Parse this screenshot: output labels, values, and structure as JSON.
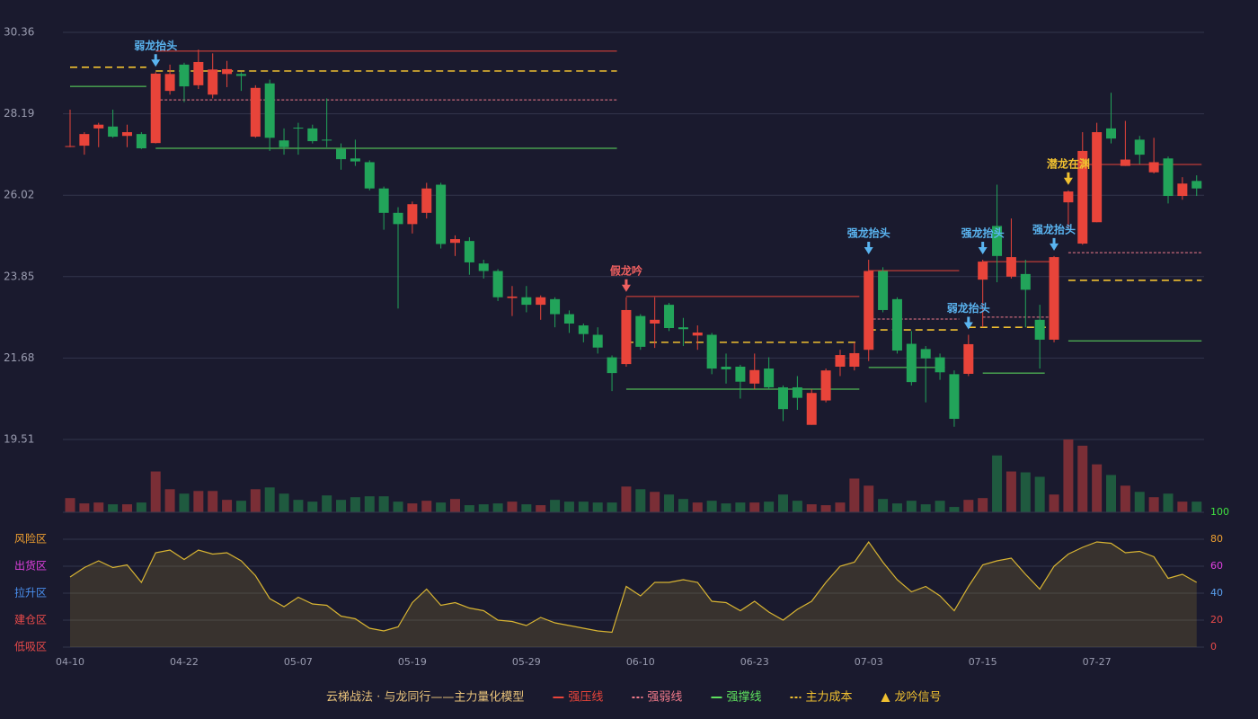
{
  "chart_data": {
    "type": "candlestick",
    "title": "云梯战法 · 与龙同行——主力量化模型",
    "categories": [
      "04-10",
      null,
      null,
      null,
      null,
      null,
      null,
      null,
      "04-22",
      null,
      null,
      null,
      null,
      null,
      null,
      null,
      "05-07",
      null,
      null,
      null,
      null,
      null,
      null,
      null,
      "05-19",
      null,
      null,
      null,
      null,
      null,
      null,
      null,
      "05-29",
      null,
      null,
      null,
      null,
      null,
      null,
      null,
      "06-10",
      null,
      null,
      null,
      null,
      null,
      null,
      null,
      "06-23",
      null,
      null,
      null,
      null,
      null,
      null,
      null,
      "07-03",
      null,
      null,
      null,
      null,
      null,
      null,
      null,
      "07-15",
      null,
      null,
      null,
      null,
      null,
      null,
      null,
      "07-27",
      null,
      null,
      null,
      null,
      null,
      null,
      null
    ],
    "open": [
      27.32,
      27.34,
      27.8,
      27.85,
      27.6,
      27.65,
      27.41,
      28.8,
      29.5,
      28.95,
      28.7,
      29.25,
      29.25,
      27.58,
      29.0,
      27.48,
      27.82,
      27.8,
      27.5,
      27.25,
      27.0,
      26.9,
      26.2,
      25.55,
      25.25,
      25.55,
      26.3,
      24.75,
      24.8,
      24.2,
      24.0,
      23.28,
      23.3,
      23.1,
      23.25,
      22.85,
      22.55,
      22.3,
      21.7,
      21.52,
      22.8,
      22.6,
      23.1,
      22.5,
      22.28,
      22.3,
      21.45,
      21.45,
      21.0,
      21.4,
      20.9,
      20.9,
      19.9,
      20.55,
      21.45,
      21.45,
      21.9,
      24.0,
      23.25,
      22.06,
      21.92,
      21.7,
      21.25,
      21.26,
      23.77,
      25.2,
      23.85,
      23.92,
      22.7,
      22.17,
      25.83,
      24.73,
      25.3,
      27.8,
      26.8,
      27.5,
      26.63,
      27.0,
      26.0,
      26.4
    ],
    "high": [
      28.3,
      27.7,
      27.95,
      28.3,
      27.9,
      27.7,
      29.3,
      29.5,
      29.55,
      29.9,
      29.8,
      29.6,
      29.3,
      28.95,
      29.1,
      27.8,
      27.95,
      27.9,
      28.6,
      27.4,
      27.5,
      26.95,
      26.25,
      25.7,
      25.85,
      26.35,
      26.35,
      24.95,
      24.9,
      24.3,
      24.05,
      23.6,
      23.6,
      23.35,
      23.3,
      22.95,
      22.6,
      22.5,
      21.75,
      23.3,
      22.85,
      23.3,
      23.15,
      22.75,
      22.55,
      22.35,
      21.8,
      21.5,
      21.8,
      21.7,
      20.95,
      21.2,
      20.85,
      21.4,
      21.9,
      22.1,
      24.3,
      24.1,
      23.3,
      22.4,
      22.0,
      21.8,
      21.35,
      22.3,
      24.3,
      26.3,
      25.4,
      24.3,
      23.1,
      24.4,
      26.15,
      27.7,
      27.95,
      28.75,
      28.0,
      27.6,
      27.55,
      27.05,
      26.5,
      26.55
    ],
    "low": [
      27.3,
      27.1,
      27.3,
      27.55,
      27.3,
      27.25,
      27.4,
      28.7,
      28.5,
      28.85,
      28.6,
      28.9,
      28.8,
      27.55,
      27.2,
      27.1,
      27.1,
      27.4,
      27.3,
      26.7,
      26.8,
      26.15,
      25.1,
      23.0,
      25.0,
      25.4,
      24.6,
      24.4,
      23.9,
      23.8,
      23.2,
      22.8,
      22.9,
      22.7,
      22.5,
      22.35,
      22.1,
      21.8,
      20.8,
      21.45,
      21.9,
      21.95,
      22.4,
      22.0,
      21.9,
      21.25,
      21.0,
      20.6,
      20.85,
      20.85,
      20.0,
      20.3,
      19.9,
      20.5,
      21.2,
      21.35,
      21.6,
      22.9,
      21.8,
      20.95,
      20.5,
      21.1,
      19.85,
      21.2,
      22.5,
      23.7,
      23.8,
      22.5,
      21.4,
      22.1,
      25.1,
      24.7,
      25.3,
      27.4,
      26.8,
      26.85,
      26.6,
      25.8,
      25.9,
      26.0
    ],
    "close": [
      27.33,
      27.65,
      27.9,
      27.58,
      27.7,
      27.27,
      29.26,
      29.25,
      28.92,
      29.57,
      29.37,
      29.38,
      29.2,
      28.88,
      27.55,
      27.3,
      27.8,
      27.46,
      27.48,
      26.98,
      26.92,
      26.2,
      25.55,
      25.25,
      25.78,
      26.2,
      24.72,
      24.85,
      24.23,
      24.0,
      23.3,
      23.32,
      23.1,
      23.3,
      22.85,
      22.6,
      22.32,
      21.96,
      21.28,
      22.96,
      21.98,
      22.7,
      22.48,
      22.45,
      22.36,
      21.4,
      21.38,
      21.05,
      21.36,
      20.9,
      20.32,
      20.62,
      20.75,
      21.35,
      21.76,
      21.81,
      24.0,
      22.96,
      21.88,
      21.04,
      21.67,
      21.3,
      20.06,
      22.05,
      24.25,
      24.4,
      24.37,
      23.5,
      22.17,
      24.37,
      26.12,
      27.2,
      27.7,
      27.53,
      26.97,
      27.1,
      26.9,
      26.0,
      26.33,
      26.2
    ],
    "up_color": "#e8443a",
    "down_color": "#22a45a",
    "volume_up_color": "#7a2e36",
    "volume_down_color": "#1f5a3f",
    "ylim": [
      19.51,
      30.36
    ],
    "yticks": [
      19.51,
      21.68,
      23.85,
      26.02,
      28.19,
      30.36
    ],
    "grid": true,
    "volume": [
      16,
      10,
      11,
      9,
      9,
      11,
      46,
      26,
      21,
      24,
      24,
      14,
      13,
      26,
      28,
      21,
      14,
      12,
      19,
      14,
      17,
      18,
      18,
      12,
      10,
      13,
      11,
      15,
      8,
      9,
      10,
      12,
      9,
      8,
      14,
      12,
      12,
      11,
      11,
      29,
      26,
      23,
      20,
      15,
      11,
      13,
      10,
      11,
      11,
      12,
      20,
      13,
      9,
      8,
      11,
      38,
      30,
      15,
      10,
      13,
      9,
      13,
      6,
      14,
      16,
      64,
      46,
      45,
      40,
      20,
      82,
      75,
      54,
      42,
      30,
      23,
      17,
      21,
      12,
      12
    ],
    "lines": [
      {
        "name": "强压线",
        "color": "#e8443a",
        "dashed": false,
        "segments": [
          {
            "from": 6,
            "to": 38,
            "value": 29.86
          },
          {
            "from": 39,
            "to": 55,
            "value": 23.32
          },
          {
            "from": 56,
            "to": 62,
            "value": 24.01
          },
          {
            "from": 64,
            "to": 69,
            "value": 24.25
          },
          {
            "from": 70,
            "to": 79,
            "value": 26.84
          }
        ]
      },
      {
        "name": "强弱线",
        "color": "#f07a8a",
        "dashed": true,
        "segments": [
          {
            "from": 6,
            "to": 38,
            "value": 28.56
          },
          {
            "from": 56,
            "to": 62,
            "value": 22.72
          },
          {
            "from": 64,
            "to": 69,
            "value": 22.77
          },
          {
            "from": 70,
            "to": 79,
            "value": 24.49
          }
        ]
      },
      {
        "name": "强撑线",
        "color": "#5ee05e",
        "dashed": false,
        "segments": [
          {
            "from": 0,
            "to": 5,
            "value": 28.92
          },
          {
            "from": 6,
            "to": 38,
            "value": 27.27
          },
          {
            "from": 39,
            "to": 55,
            "value": 20.85
          },
          {
            "from": 56,
            "to": 61,
            "value": 21.43
          },
          {
            "from": 64,
            "to": 68,
            "value": 21.28
          },
          {
            "from": 70,
            "to": 79,
            "value": 22.14
          }
        ]
      },
      {
        "name": "主力成本",
        "color": "#f0c030",
        "dashed": true,
        "segments": [
          {
            "from": 0,
            "to": 5,
            "value": 29.43
          },
          {
            "from": 6,
            "to": 38,
            "value": 29.33
          },
          {
            "from": 39,
            "to": 55,
            "value": 22.1
          },
          {
            "from": 56,
            "to": 62,
            "value": 22.43
          },
          {
            "from": 63,
            "to": 69,
            "value": 22.5
          },
          {
            "from": 70,
            "to": 79,
            "value": 23.75
          }
        ]
      }
    ],
    "signals": [
      {
        "index": 6,
        "label": "弱龙抬头",
        "color": "#5ab4f0"
      },
      {
        "index": 39,
        "label": "假龙吟",
        "color": "#f06060"
      },
      {
        "index": 56,
        "label": "强龙抬头",
        "color": "#5ab4f0"
      },
      {
        "index": 63,
        "label": "弱龙抬头",
        "color": "#5ab4f0"
      },
      {
        "index": 64,
        "label": "强龙抬头",
        "color": "#5ab4f0"
      },
      {
        "index": 69,
        "label": "强龙抬头",
        "color": "#5ab4f0"
      },
      {
        "index": 70,
        "label": "潜龙在渊",
        "color": "#f0c030"
      }
    ],
    "signal_legend": {
      "name": "龙吟信号",
      "color": "#f0c030"
    },
    "indicator": {
      "color": "#d8b432",
      "ylim": [
        0,
        100
      ],
      "yticks": [
        0,
        20,
        40,
        60,
        80,
        100
      ],
      "tick_colors": [
        "#e84a4a",
        "#e84a4a",
        "#5aa0f0",
        "#e040e0",
        "#f0a030",
        "#40e040"
      ],
      "zones": [
        {
          "label": "风险区",
          "value": 80,
          "color": "#f0a030"
        },
        {
          "label": "出货区",
          "value": 60,
          "color": "#e040e0"
        },
        {
          "label": "拉升区",
          "value": 40,
          "color": "#4a90f0"
        },
        {
          "label": "建仓区",
          "value": 20,
          "color": "#e84a4a"
        },
        {
          "label": "低吸区",
          "value": 0,
          "color": "#e84a4a"
        }
      ],
      "values": [
        52,
        59,
        64,
        59,
        61,
        48,
        70,
        72,
        65,
        72,
        69,
        70,
        64,
        53,
        36,
        30,
        37,
        32,
        31,
        23,
        21,
        14,
        12,
        15,
        33,
        43,
        31,
        33,
        29,
        27,
        20,
        19,
        16,
        22,
        18,
        16,
        14,
        12,
        11,
        45,
        38,
        48,
        48,
        50,
        48,
        34,
        33,
        27,
        34,
        26,
        20,
        28,
        34,
        48,
        60,
        63,
        78,
        63,
        50,
        41,
        45,
        38,
        27,
        45,
        61,
        64,
        66,
        54,
        43,
        60,
        69,
        74,
        78,
        77,
        70,
        71,
        67,
        51,
        54,
        48
      ]
    }
  }
}
